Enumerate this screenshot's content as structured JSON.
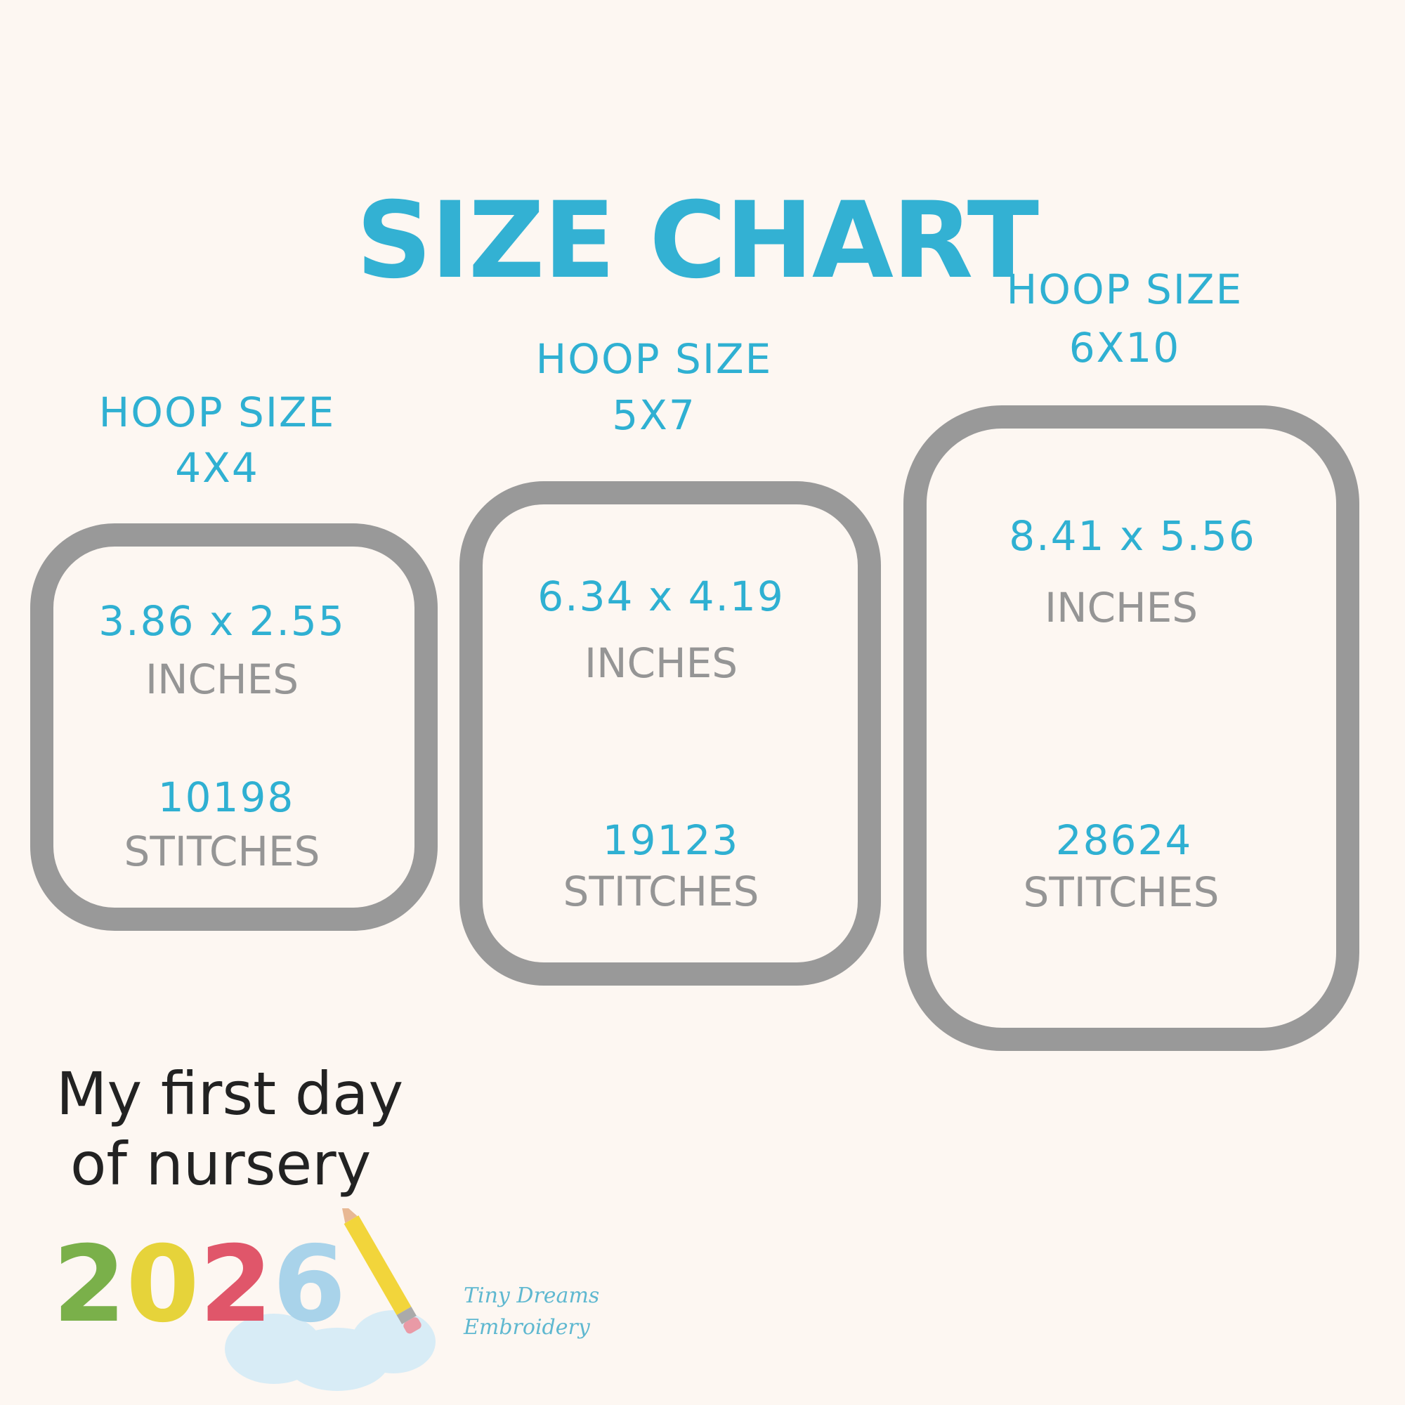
{
  "title": "SIZE CHART",
  "hoops": [
    {
      "hoop_label": "HOOP SIZE",
      "hoop_size": "4X4",
      "dimensions": "3.86 x 2.55",
      "dimensions_unit": "INCHES",
      "stitches": "10198",
      "stitches_label": "STITCHES"
    },
    {
      "hoop_label": "HOOP SIZE",
      "hoop_size": "5X7",
      "dimensions": "6.34 x 4.19",
      "dimensions_unit": "INCHES",
      "stitches": "19123",
      "stitches_label": "STITCHES"
    },
    {
      "hoop_label": "HOOP SIZE",
      "hoop_size": "6X10",
      "dimensions": "8.41 x 5.56",
      "dimensions_unit": "INCHES",
      "stitches": "28624",
      "stitches_label": "STITCHES"
    }
  ],
  "design": {
    "line1": "My first day",
    "line2": "of nursery",
    "year": "2026"
  },
  "watermark": {
    "line1": "Tiny Dreams",
    "line2": "Embroidery"
  },
  "colors": {
    "accent": "#2fb0d2",
    "frame": "#999999",
    "background": "#fdf7f2"
  }
}
